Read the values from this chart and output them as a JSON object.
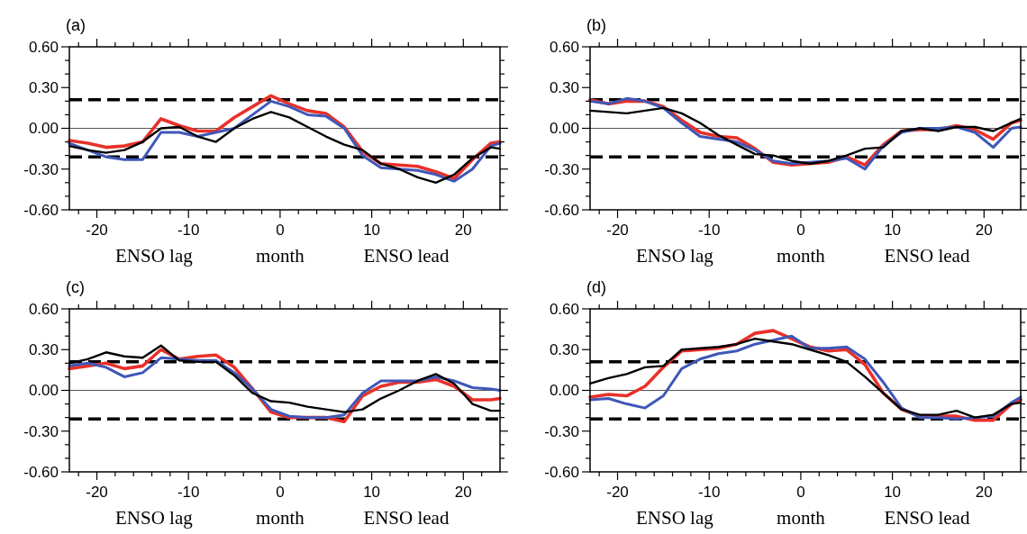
{
  "chart_data": [
    {
      "type": "line",
      "title": "(a)",
      "xlabel": "month",
      "annotations": [
        "ENSO lag",
        "ENSO lead"
      ],
      "x": [
        -23,
        -21,
        -19,
        -17,
        -15,
        -13,
        -11,
        -9,
        -7,
        -5,
        -3,
        -1,
        1,
        3,
        5,
        7,
        9,
        11,
        13,
        15,
        17,
        19,
        21,
        23,
        24
      ],
      "xlim": [
        -23,
        24
      ],
      "ylim": [
        -0.6,
        0.6
      ],
      "xticks": [
        {
          "value": -22,
          "label": null
        },
        -20,
        {
          "value": -18,
          "label": null
        },
        {
          "value": -16,
          "label": null
        },
        {
          "value": -14,
          "label": null
        },
        {
          "value": -12,
          "label": null
        },
        -10,
        {
          "value": -8,
          "label": null
        },
        {
          "value": -6,
          "label": null
        },
        {
          "value": -4,
          "label": null
        },
        {
          "value": -2,
          "label": null
        },
        0,
        {
          "value": 2,
          "label": null
        },
        {
          "value": 4,
          "label": null
        },
        {
          "value": 6,
          "label": null
        },
        {
          "value": 8,
          "label": null
        },
        10,
        {
          "value": 12,
          "label": null
        },
        {
          "value": 14,
          "label": null
        },
        {
          "value": 16,
          "label": null
        },
        {
          "value": 18,
          "label": null
        },
        20,
        {
          "value": 22,
          "label": null
        }
      ],
      "yticks": [
        {
          "value": -0.6,
          "label": "-0.60"
        },
        {
          "value": -0.5,
          "label": null
        },
        {
          "value": -0.4,
          "label": null
        },
        {
          "value": -0.3,
          "label": "-0.30"
        },
        {
          "value": -0.2,
          "label": null
        },
        {
          "value": -0.1,
          "label": null
        },
        {
          "value": 0,
          "label": "0.00"
        },
        {
          "value": 0.1,
          "label": null
        },
        {
          "value": 0.2,
          "label": null
        },
        {
          "value": 0.3,
          "label": "0.30"
        },
        {
          "value": 0.4,
          "label": null
        },
        {
          "value": 0.5,
          "label": null
        },
        {
          "value": 0.6,
          "label": "0.60"
        }
      ],
      "ref_lines": [
        {
          "axis": "y",
          "value": 0.21,
          "color": "#000000",
          "line_style": "dashed"
        },
        {
          "axis": "y",
          "value": -0.21,
          "color": "#000000",
          "line_style": "dashed"
        },
        {
          "axis": "y",
          "value": 0,
          "color": "#555555",
          "line_style": "solid"
        }
      ],
      "series": [
        {
          "color": "#e8312a",
          "values": [
            -0.09,
            -0.11,
            -0.14,
            -0.13,
            -0.1,
            0.07,
            0.02,
            -0.02,
            -0.02,
            0.08,
            0.16,
            0.24,
            0.18,
            0.13,
            0.11,
            0.01,
            -0.17,
            -0.26,
            -0.27,
            -0.28,
            -0.32,
            -0.37,
            -0.23,
            -0.11,
            -0.1
          ]
        },
        {
          "color": "#3f57b8",
          "values": [
            -0.11,
            -0.16,
            -0.21,
            -0.23,
            -0.23,
            -0.03,
            -0.03,
            -0.06,
            -0.03,
            0,
            0.1,
            0.2,
            0.16,
            0.1,
            0.09,
            0,
            -0.2,
            -0.29,
            -0.3,
            -0.31,
            -0.34,
            -0.39,
            -0.3,
            -0.13,
            -0.11
          ]
        },
        {
          "color": "#000000",
          "values": [
            -0.13,
            -0.16,
            -0.18,
            -0.16,
            -0.1,
            0,
            0.01,
            -0.06,
            -0.1,
            0,
            0.07,
            0.12,
            0.08,
            0.01,
            -0.06,
            -0.12,
            -0.16,
            -0.26,
            -0.3,
            -0.36,
            -0.4,
            -0.34,
            -0.22,
            -0.14,
            -0.15
          ]
        }
      ]
    },
    {
      "type": "line",
      "title": "(b)",
      "xlabel": "month",
      "annotations": [
        "ENSO lag",
        "ENSO lead"
      ],
      "x": [
        -23,
        -21,
        -19,
        -17,
        -15,
        -13,
        -11,
        -9,
        -7,
        -5,
        -3,
        -1,
        1,
        3,
        5,
        7,
        9,
        11,
        13,
        15,
        17,
        19,
        21,
        23,
        24
      ],
      "xlim": [
        -23,
        24
      ],
      "ylim": [
        -0.6,
        0.6
      ],
      "xticks": [
        {
          "value": -22,
          "label": null
        },
        -20,
        {
          "value": -18,
          "label": null
        },
        {
          "value": -16,
          "label": null
        },
        {
          "value": -14,
          "label": null
        },
        {
          "value": -12,
          "label": null
        },
        -10,
        {
          "value": -8,
          "label": null
        },
        {
          "value": -6,
          "label": null
        },
        {
          "value": -4,
          "label": null
        },
        {
          "value": -2,
          "label": null
        },
        0,
        {
          "value": 2,
          "label": null
        },
        {
          "value": 4,
          "label": null
        },
        {
          "value": 6,
          "label": null
        },
        {
          "value": 8,
          "label": null
        },
        10,
        {
          "value": 12,
          "label": null
        },
        {
          "value": 14,
          "label": null
        },
        {
          "value": 16,
          "label": null
        },
        {
          "value": 18,
          "label": null
        },
        20,
        {
          "value": 22,
          "label": null
        }
      ],
      "yticks": [
        {
          "value": -0.6,
          "label": "-0.60"
        },
        {
          "value": -0.5,
          "label": null
        },
        {
          "value": -0.4,
          "label": null
        },
        {
          "value": -0.3,
          "label": "-0.30"
        },
        {
          "value": -0.2,
          "label": null
        },
        {
          "value": -0.1,
          "label": null
        },
        {
          "value": 0,
          "label": "0.00"
        },
        {
          "value": 0.1,
          "label": null
        },
        {
          "value": 0.2,
          "label": null
        },
        {
          "value": 0.3,
          "label": "0.30"
        },
        {
          "value": 0.4,
          "label": null
        },
        {
          "value": 0.5,
          "label": null
        },
        {
          "value": 0.6,
          "label": "0.60"
        }
      ],
      "ref_lines": [
        {
          "axis": "y",
          "value": 0.21,
          "color": "#000000",
          "line_style": "dashed"
        },
        {
          "axis": "y",
          "value": -0.21,
          "color": "#000000",
          "line_style": "dashed"
        },
        {
          "axis": "y",
          "value": 0,
          "color": "#555555",
          "line_style": "solid"
        }
      ],
      "series": [
        {
          "color": "#e8312a",
          "values": [
            0.21,
            0.18,
            0.2,
            0.2,
            0.16,
            0.06,
            -0.03,
            -0.06,
            -0.07,
            -0.15,
            -0.25,
            -0.27,
            -0.26,
            -0.25,
            -0.21,
            -0.27,
            -0.12,
            -0.02,
            -0.01,
            -0.01,
            0.02,
            -0.01,
            -0.08,
            0.04,
            0.06
          ]
        },
        {
          "color": "#3f57b8",
          "values": [
            0.2,
            0.18,
            0.22,
            0.2,
            0.15,
            0.04,
            -0.06,
            -0.08,
            -0.1,
            -0.16,
            -0.24,
            -0.26,
            -0.25,
            -0.24,
            -0.22,
            -0.3,
            -0.13,
            -0.03,
            0,
            0,
            0.01,
            -0.03,
            -0.14,
            0,
            0.01
          ]
        },
        {
          "color": "#000000",
          "values": [
            0.13,
            0.12,
            0.11,
            0.13,
            0.15,
            0.11,
            0.04,
            -0.05,
            -0.12,
            -0.19,
            -0.2,
            -0.24,
            -0.26,
            -0.24,
            -0.2,
            -0.15,
            -0.14,
            -0.02,
            0,
            -0.02,
            0.01,
            0.01,
            -0.02,
            0.04,
            0.07
          ]
        }
      ]
    },
    {
      "type": "line",
      "title": "(c)",
      "xlabel": "month",
      "annotations": [
        "ENSO lag",
        "ENSO lead"
      ],
      "x": [
        -23,
        -21,
        -19,
        -17,
        -15,
        -13,
        -11,
        -9,
        -7,
        -5,
        -3,
        -1,
        1,
        3,
        5,
        7,
        9,
        11,
        13,
        15,
        17,
        19,
        21,
        23,
        24
      ],
      "xlim": [
        -23,
        24
      ],
      "ylim": [
        -0.6,
        0.6
      ],
      "xticks": [
        {
          "value": -22,
          "label": null
        },
        -20,
        {
          "value": -18,
          "label": null
        },
        {
          "value": -16,
          "label": null
        },
        {
          "value": -14,
          "label": null
        },
        {
          "value": -12,
          "label": null
        },
        -10,
        {
          "value": -8,
          "label": null
        },
        {
          "value": -6,
          "label": null
        },
        {
          "value": -4,
          "label": null
        },
        {
          "value": -2,
          "label": null
        },
        0,
        {
          "value": 2,
          "label": null
        },
        {
          "value": 4,
          "label": null
        },
        {
          "value": 6,
          "label": null
        },
        {
          "value": 8,
          "label": null
        },
        10,
        {
          "value": 12,
          "label": null
        },
        {
          "value": 14,
          "label": null
        },
        {
          "value": 16,
          "label": null
        },
        {
          "value": 18,
          "label": null
        },
        20,
        {
          "value": 22,
          "label": null
        }
      ],
      "yticks": [
        {
          "value": -0.6,
          "label": "-0.60"
        },
        {
          "value": -0.5,
          "label": null
        },
        {
          "value": -0.4,
          "label": null
        },
        {
          "value": -0.3,
          "label": "-0.30"
        },
        {
          "value": -0.2,
          "label": null
        },
        {
          "value": -0.1,
          "label": null
        },
        {
          "value": 0,
          "label": "0.00"
        },
        {
          "value": 0.1,
          "label": null
        },
        {
          "value": 0.2,
          "label": null
        },
        {
          "value": 0.3,
          "label": "0.30"
        },
        {
          "value": 0.4,
          "label": null
        },
        {
          "value": 0.5,
          "label": null
        },
        {
          "value": 0.6,
          "label": "0.60"
        }
      ],
      "ref_lines": [
        {
          "axis": "y",
          "value": 0.21,
          "color": "#000000",
          "line_style": "dashed"
        },
        {
          "axis": "y",
          "value": -0.21,
          "color": "#000000",
          "line_style": "dashed"
        },
        {
          "axis": "y",
          "value": 0,
          "color": "#555555",
          "line_style": "solid"
        }
      ],
      "series": [
        {
          "color": "#e8312a",
          "values": [
            0.16,
            0.18,
            0.2,
            0.16,
            0.18,
            0.3,
            0.23,
            0.25,
            0.26,
            0.17,
            0.01,
            -0.16,
            -0.2,
            -0.2,
            -0.2,
            -0.23,
            -0.04,
            0.03,
            0.06,
            0.06,
            0.08,
            0.03,
            -0.07,
            -0.07,
            -0.06
          ]
        },
        {
          "color": "#3f57b8",
          "values": [
            0.18,
            0.2,
            0.17,
            0.1,
            0.13,
            0.24,
            0.23,
            0.22,
            0.22,
            0.13,
            0.01,
            -0.14,
            -0.19,
            -0.2,
            -0.2,
            -0.18,
            -0.02,
            0.07,
            0.07,
            0.07,
            0.1,
            0.07,
            0.02,
            0.01,
            0
          ]
        },
        {
          "color": "#000000",
          "values": [
            0.2,
            0.23,
            0.28,
            0.25,
            0.24,
            0.33,
            0.22,
            0.21,
            0.21,
            0.11,
            -0.02,
            -0.08,
            -0.09,
            -0.12,
            -0.14,
            -0.16,
            -0.14,
            -0.06,
            0,
            0.07,
            0.12,
            0.05,
            -0.1,
            -0.15,
            -0.15
          ]
        }
      ]
    },
    {
      "type": "line",
      "title": "(d)",
      "xlabel": "month",
      "annotations": [
        "ENSO lag",
        "ENSO lead"
      ],
      "x": [
        -23,
        -21,
        -19,
        -17,
        -15,
        -13,
        -11,
        -9,
        -7,
        -5,
        -3,
        -1,
        1,
        3,
        5,
        7,
        9,
        11,
        13,
        15,
        17,
        19,
        21,
        23,
        24
      ],
      "xlim": [
        -23,
        24
      ],
      "ylim": [
        -0.6,
        0.6
      ],
      "xticks": [
        {
          "value": -22,
          "label": null
        },
        -20,
        {
          "value": -18,
          "label": null
        },
        {
          "value": -16,
          "label": null
        },
        {
          "value": -14,
          "label": null
        },
        {
          "value": -12,
          "label": null
        },
        -10,
        {
          "value": -8,
          "label": null
        },
        {
          "value": -6,
          "label": null
        },
        {
          "value": -4,
          "label": null
        },
        {
          "value": -2,
          "label": null
        },
        0,
        {
          "value": 2,
          "label": null
        },
        {
          "value": 4,
          "label": null
        },
        {
          "value": 6,
          "label": null
        },
        {
          "value": 8,
          "label": null
        },
        10,
        {
          "value": 12,
          "label": null
        },
        {
          "value": 14,
          "label": null
        },
        {
          "value": 16,
          "label": null
        },
        {
          "value": 18,
          "label": null
        },
        20,
        {
          "value": 22,
          "label": null
        }
      ],
      "yticks": [
        {
          "value": -0.6,
          "label": "-0.60"
        },
        {
          "value": -0.5,
          "label": null
        },
        {
          "value": -0.4,
          "label": null
        },
        {
          "value": -0.3,
          "label": "-0.30"
        },
        {
          "value": -0.2,
          "label": null
        },
        {
          "value": -0.1,
          "label": null
        },
        {
          "value": 0,
          "label": "0.00"
        },
        {
          "value": 0.1,
          "label": null
        },
        {
          "value": 0.2,
          "label": null
        },
        {
          "value": 0.3,
          "label": "0.30"
        },
        {
          "value": 0.4,
          "label": null
        },
        {
          "value": 0.5,
          "label": null
        },
        {
          "value": 0.6,
          "label": "0.60"
        }
      ],
      "ref_lines": [
        {
          "axis": "y",
          "value": 0.21,
          "color": "#000000",
          "line_style": "dashed"
        },
        {
          "axis": "y",
          "value": -0.21,
          "color": "#000000",
          "line_style": "dashed"
        },
        {
          "axis": "y",
          "value": 0,
          "color": "#555555",
          "line_style": "solid"
        }
      ],
      "series": [
        {
          "color": "#e8312a",
          "values": [
            -0.05,
            -0.03,
            -0.04,
            0.03,
            0.17,
            0.29,
            0.3,
            0.31,
            0.34,
            0.42,
            0.44,
            0.38,
            0.32,
            0.29,
            0.3,
            0.19,
            -0.02,
            -0.14,
            -0.19,
            -0.19,
            -0.19,
            -0.22,
            -0.22,
            -0.1,
            -0.07
          ]
        },
        {
          "color": "#3f57b8",
          "values": [
            -0.07,
            -0.06,
            -0.1,
            -0.13,
            -0.04,
            0.16,
            0.23,
            0.27,
            0.29,
            0.34,
            0.37,
            0.4,
            0.31,
            0.31,
            0.32,
            0.23,
            0.06,
            -0.13,
            -0.2,
            -0.2,
            -0.21,
            -0.2,
            -0.19,
            -0.09,
            -0.05
          ]
        },
        {
          "color": "#000000",
          "values": [
            0.05,
            0.09,
            0.12,
            0.17,
            0.18,
            0.3,
            0.31,
            0.32,
            0.34,
            0.38,
            0.36,
            0.34,
            0.3,
            0.26,
            0.21,
            0.1,
            -0.02,
            -0.14,
            -0.18,
            -0.18,
            -0.15,
            -0.2,
            -0.18,
            -0.1,
            -0.09
          ]
        }
      ]
    }
  ]
}
